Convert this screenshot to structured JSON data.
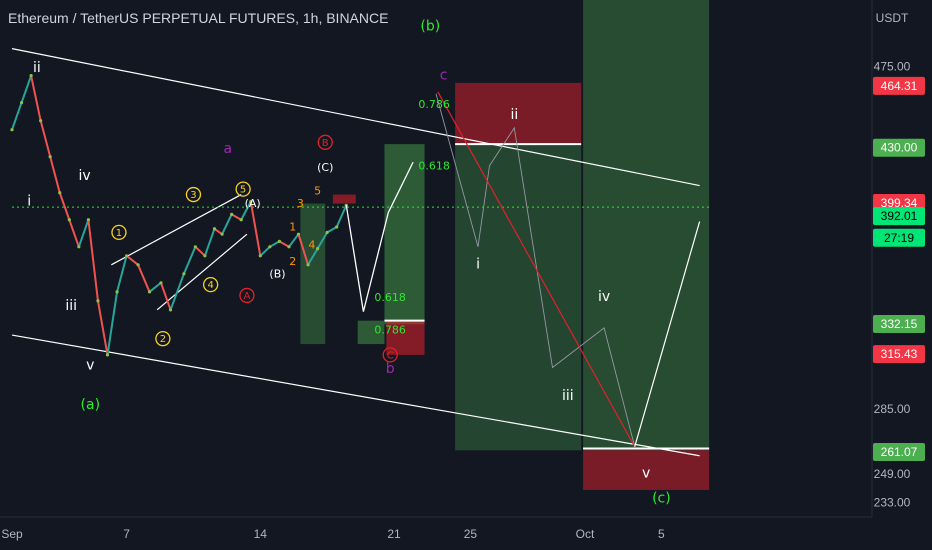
{
  "header": {
    "title": "Ethereum / TetherUS PERPETUAL FUTURES, 1h, BINANCE",
    "currency": "USDT"
  },
  "colors": {
    "background": "#131722",
    "white": "#ffffff",
    "green": "#2ee82e",
    "red": "#e0212b",
    "purple": "#9c27b0",
    "yellow": "#f7d31b",
    "orange": "#ff9800",
    "zone_green": "#5b8c5a",
    "zone_red": "#8c3b43"
  },
  "chart_data": {
    "type": "line",
    "title": "Ethereum / TetherUS PERPETUAL FUTURES, 1h, BINANCE",
    "ylim": [
      225,
      512
    ],
    "xlim": [
      0,
      36
    ],
    "y_ticks": [
      "475.00",
      "432.41",
      "394.36",
      "329.38",
      "285.00",
      "249.00",
      "233.00"
    ],
    "x_ticks": [
      {
        "x": 0,
        "label": "Sep"
      },
      {
        "x": 6,
        "label": "7"
      },
      {
        "x": 13,
        "label": "14"
      },
      {
        "x": 20,
        "label": "21"
      },
      {
        "x": 24,
        "label": "25"
      },
      {
        "x": 30,
        "label": "Oct"
      },
      {
        "x": 34,
        "label": "5"
      }
    ],
    "price_labels": [
      {
        "value": 464.31,
        "text": "464.31",
        "color": "#f23645",
        "text_color": "#ffffff"
      },
      {
        "value": 430.0,
        "text": "430.00",
        "color": "#4caf50",
        "text_color": "#ffffff"
      },
      {
        "value": 399.34,
        "text": "399.34",
        "color": "#f23645",
        "text_color": "#ffffff"
      },
      {
        "value": 392.01,
        "text": "392.01",
        "color": "#00e676",
        "text_color": "#000000"
      },
      {
        "value": 380.0,
        "text": "27:19",
        "color": "#00e676",
        "text_color": "#000000"
      },
      {
        "value": 332.15,
        "text": "332.15",
        "color": "#4caf50",
        "text_color": "#ffffff"
      },
      {
        "value": 315.43,
        "text": "315.43",
        "color": "#f23645",
        "text_color": "#ffffff"
      },
      {
        "value": 261.07,
        "text": "261.07",
        "color": "#4caf50",
        "text_color": "#ffffff"
      }
    ],
    "series": [
      {
        "name": "price",
        "points": [
          [
            0,
            440
          ],
          [
            0.5,
            455
          ],
          [
            1,
            470
          ],
          [
            1.5,
            445
          ],
          [
            2,
            425
          ],
          [
            2.5,
            405
          ],
          [
            3,
            390
          ],
          [
            3.5,
            375
          ],
          [
            4,
            390
          ],
          [
            4.5,
            345
          ],
          [
            5,
            315
          ],
          [
            5.5,
            350
          ],
          [
            6,
            370
          ],
          [
            6.6,
            365
          ],
          [
            7.2,
            350
          ],
          [
            7.8,
            355
          ],
          [
            8.3,
            340
          ],
          [
            9,
            360
          ],
          [
            9.6,
            375
          ],
          [
            10.1,
            370
          ],
          [
            10.6,
            385
          ],
          [
            11,
            382
          ],
          [
            11.5,
            393
          ],
          [
            12,
            390
          ],
          [
            12.5,
            400
          ],
          [
            13,
            370
          ],
          [
            13.5,
            375
          ],
          [
            14,
            378
          ],
          [
            14.5,
            375
          ],
          [
            15,
            382
          ],
          [
            15.5,
            365
          ],
          [
            16,
            374
          ],
          [
            16.5,
            383
          ],
          [
            17,
            386
          ],
          [
            17.5,
            398
          ]
        ]
      }
    ],
    "projections": [
      {
        "name": "path-b",
        "color": "#ffffff",
        "width": 1.3,
        "points": [
          [
            17.5,
            398
          ],
          [
            18.4,
            339
          ],
          [
            19.7,
            394
          ],
          [
            21.0,
            422
          ]
        ]
      },
      {
        "name": "path-alt",
        "color": "#9598a1",
        "width": 0.9,
        "points": [
          [
            22.2,
            460
          ],
          [
            24.4,
            375
          ],
          [
            25.0,
            420
          ],
          [
            26.3,
            441
          ],
          [
            28.3,
            308
          ],
          [
            31.0,
            330
          ],
          [
            32.6,
            264
          ]
        ]
      },
      {
        "name": "path-c",
        "color": "#e0212b",
        "width": 1.2,
        "points": [
          [
            22.3,
            461
          ],
          [
            32.6,
            264
          ]
        ]
      },
      {
        "name": "path-up",
        "color": "#ffffff",
        "width": 1.2,
        "points": [
          [
            32.6,
            264
          ],
          [
            36,
            389
          ]
        ]
      }
    ],
    "channel_lines": [
      {
        "name": "upper-channel",
        "points": [
          [
            0,
            485
          ],
          [
            36,
            409
          ]
        ]
      },
      {
        "name": "lower-channel",
        "points": [
          [
            0,
            326
          ],
          [
            36,
            259
          ]
        ]
      }
    ],
    "wedge_lines": [
      {
        "name": "wedge-upper",
        "points": [
          [
            5.2,
            365
          ],
          [
            12.0,
            404
          ]
        ]
      },
      {
        "name": "wedge-lower",
        "points": [
          [
            7.6,
            340
          ],
          [
            12.3,
            382
          ]
        ]
      }
    ],
    "zones": [
      {
        "name": "zone-green-1",
        "x0": 15.1,
        "x1": 16.4,
        "y0": 321,
        "y1": 399,
        "color": "#4caf50",
        "opacity": 0.35
      },
      {
        "name": "zone-red-1",
        "x0": 16.8,
        "x1": 18.0,
        "y0": 399,
        "y1": 404,
        "color": "#e0212b",
        "opacity": 0.55
      },
      {
        "name": "zone-green-2",
        "x0": 18.1,
        "x1": 19.5,
        "y0": 321,
        "y1": 334,
        "color": "#4caf50",
        "opacity": 0.45
      },
      {
        "name": "zone-green-3",
        "x0": 19.5,
        "x1": 21.6,
        "y0": 332,
        "y1": 432,
        "color": "#4caf50",
        "opacity": 0.45
      },
      {
        "name": "zone-red-2",
        "x0": 19.6,
        "x1": 21.6,
        "y0": 315,
        "y1": 334,
        "color": "#e0212b",
        "opacity": 0.55
      },
      {
        "name": "zone-green-4",
        "x0": 23.2,
        "x1": 29.8,
        "y0": 262,
        "y1": 432,
        "color": "#4caf50",
        "opacity": 0.3
      },
      {
        "name": "zone-red-3",
        "x0": 23.2,
        "x1": 29.8,
        "y0": 432,
        "y1": 466,
        "color": "#e0212b",
        "opacity": 0.5
      },
      {
        "name": "zone-green-5",
        "x0": 29.9,
        "x1": 36.5,
        "y0": 262,
        "y1": 512,
        "color": "#4caf50",
        "opacity": 0.35
      },
      {
        "name": "zone-red-4",
        "x0": 29.9,
        "x1": 36.5,
        "y0": 240,
        "y1": 262,
        "color": "#e0212b",
        "opacity": 0.5
      }
    ],
    "hlines": [
      {
        "name": "level-430",
        "x0": 23.2,
        "x1": 29.8,
        "y": 432,
        "color": "#ffffff",
        "width": 2
      },
      {
        "name": "level-334",
        "x0": 19.5,
        "x1": 21.6,
        "y": 334,
        "color": "#ffffff",
        "width": 2
      },
      {
        "name": "level-263",
        "x0": 29.9,
        "x1": 36.5,
        "y": 263,
        "color": "#ffffff",
        "width": 2
      },
      {
        "name": "current-price",
        "x0": 0,
        "x1": 36.5,
        "y": 397,
        "color": "#2ee82e",
        "width": 1,
        "dash": "2,3"
      }
    ],
    "annotations": [
      {
        "text": "ii",
        "x": 1.3,
        "y": 472,
        "color": "#ffffff",
        "size": 14
      },
      {
        "text": "iv",
        "x": 3.8,
        "y": 412,
        "color": "#ffffff",
        "size": 14
      },
      {
        "text": "i",
        "x": 0.9,
        "y": 398,
        "color": "#ffffff",
        "size": 14
      },
      {
        "text": "iii",
        "x": 3.1,
        "y": 340,
        "color": "#ffffff",
        "size": 14
      },
      {
        "text": "v",
        "x": 4.1,
        "y": 307,
        "color": "#ffffff",
        "size": 14
      },
      {
        "text": "(a)",
        "x": 4.1,
        "y": 285,
        "color": "#2ee82e",
        "size": 14
      },
      {
        "text": "(b)",
        "x": 21.9,
        "y": 495,
        "color": "#2ee82e",
        "size": 14
      },
      {
        "text": "c",
        "x": 22.6,
        "y": 468,
        "color": "#9c27b0",
        "size": 14
      },
      {
        "text": "a",
        "x": 11.3,
        "y": 427,
        "color": "#9c27b0",
        "size": 14
      },
      {
        "text": "b",
        "x": 19.8,
        "y": 305,
        "color": "#9c27b0",
        "size": 14
      },
      {
        "text": "(C)",
        "x": 16.4,
        "y": 417,
        "color": "#ffffff",
        "size": 11
      },
      {
        "text": "(A)",
        "x": 12.6,
        "y": 397,
        "color": "#ffffff",
        "size": 11
      },
      {
        "text": "(B)",
        "x": 13.9,
        "y": 358,
        "color": "#ffffff",
        "size": 11
      },
      {
        "text": "3",
        "x": 15.1,
        "y": 397,
        "color": "#ff9800",
        "size": 11
      },
      {
        "text": "5",
        "x": 16.0,
        "y": 404,
        "color": "#ff9800",
        "size": 11
      },
      {
        "text": "1",
        "x": 14.7,
        "y": 384,
        "color": "#ff9800",
        "size": 11
      },
      {
        "text": "4",
        "x": 15.7,
        "y": 374,
        "color": "#ff9800",
        "size": 11
      },
      {
        "text": "2",
        "x": 14.7,
        "y": 365,
        "color": "#ff9800",
        "size": 11
      },
      {
        "text": "ii",
        "x": 26.3,
        "y": 446,
        "color": "#ffffff",
        "size": 14
      },
      {
        "text": "i",
        "x": 24.4,
        "y": 363,
        "color": "#ffffff",
        "size": 14
      },
      {
        "text": "iv",
        "x": 31.0,
        "y": 345,
        "color": "#ffffff",
        "size": 14
      },
      {
        "text": "iii",
        "x": 29.1,
        "y": 290,
        "color": "#ffffff",
        "size": 14
      },
      {
        "text": "v",
        "x": 33.2,
        "y": 247,
        "color": "#ffffff",
        "size": 14
      },
      {
        "text": "(c)",
        "x": 34.0,
        "y": 233,
        "color": "#2ee82e",
        "size": 14
      },
      {
        "text": "0.786",
        "x": 22.1,
        "y": 452,
        "color": "#2ee82e",
        "size": 11
      },
      {
        "text": "0.618",
        "x": 22.1,
        "y": 418,
        "color": "#2ee82e",
        "size": 11
      },
      {
        "text": "0.618",
        "x": 19.8,
        "y": 345,
        "color": "#2ee82e",
        "size": 11
      },
      {
        "text": "0.786",
        "x": 19.8,
        "y": 327,
        "color": "#2ee82e",
        "size": 11
      }
    ],
    "circled": [
      {
        "text": "1",
        "x": 5.6,
        "y": 383,
        "color": "#f7d31b"
      },
      {
        "text": "2",
        "x": 7.9,
        "y": 324,
        "color": "#f7d31b"
      },
      {
        "text": "3",
        "x": 9.5,
        "y": 404,
        "color": "#f7d31b"
      },
      {
        "text": "4",
        "x": 10.4,
        "y": 354,
        "color": "#f7d31b"
      },
      {
        "text": "5",
        "x": 12.1,
        "y": 407,
        "color": "#f7d31b"
      },
      {
        "text": "A",
        "x": 12.3,
        "y": 348,
        "color": "#e0212b"
      },
      {
        "text": "B",
        "x": 16.4,
        "y": 433,
        "color": "#e0212b"
      },
      {
        "text": "C",
        "x": 19.8,
        "y": 315,
        "color": "#e0212b"
      }
    ]
  }
}
